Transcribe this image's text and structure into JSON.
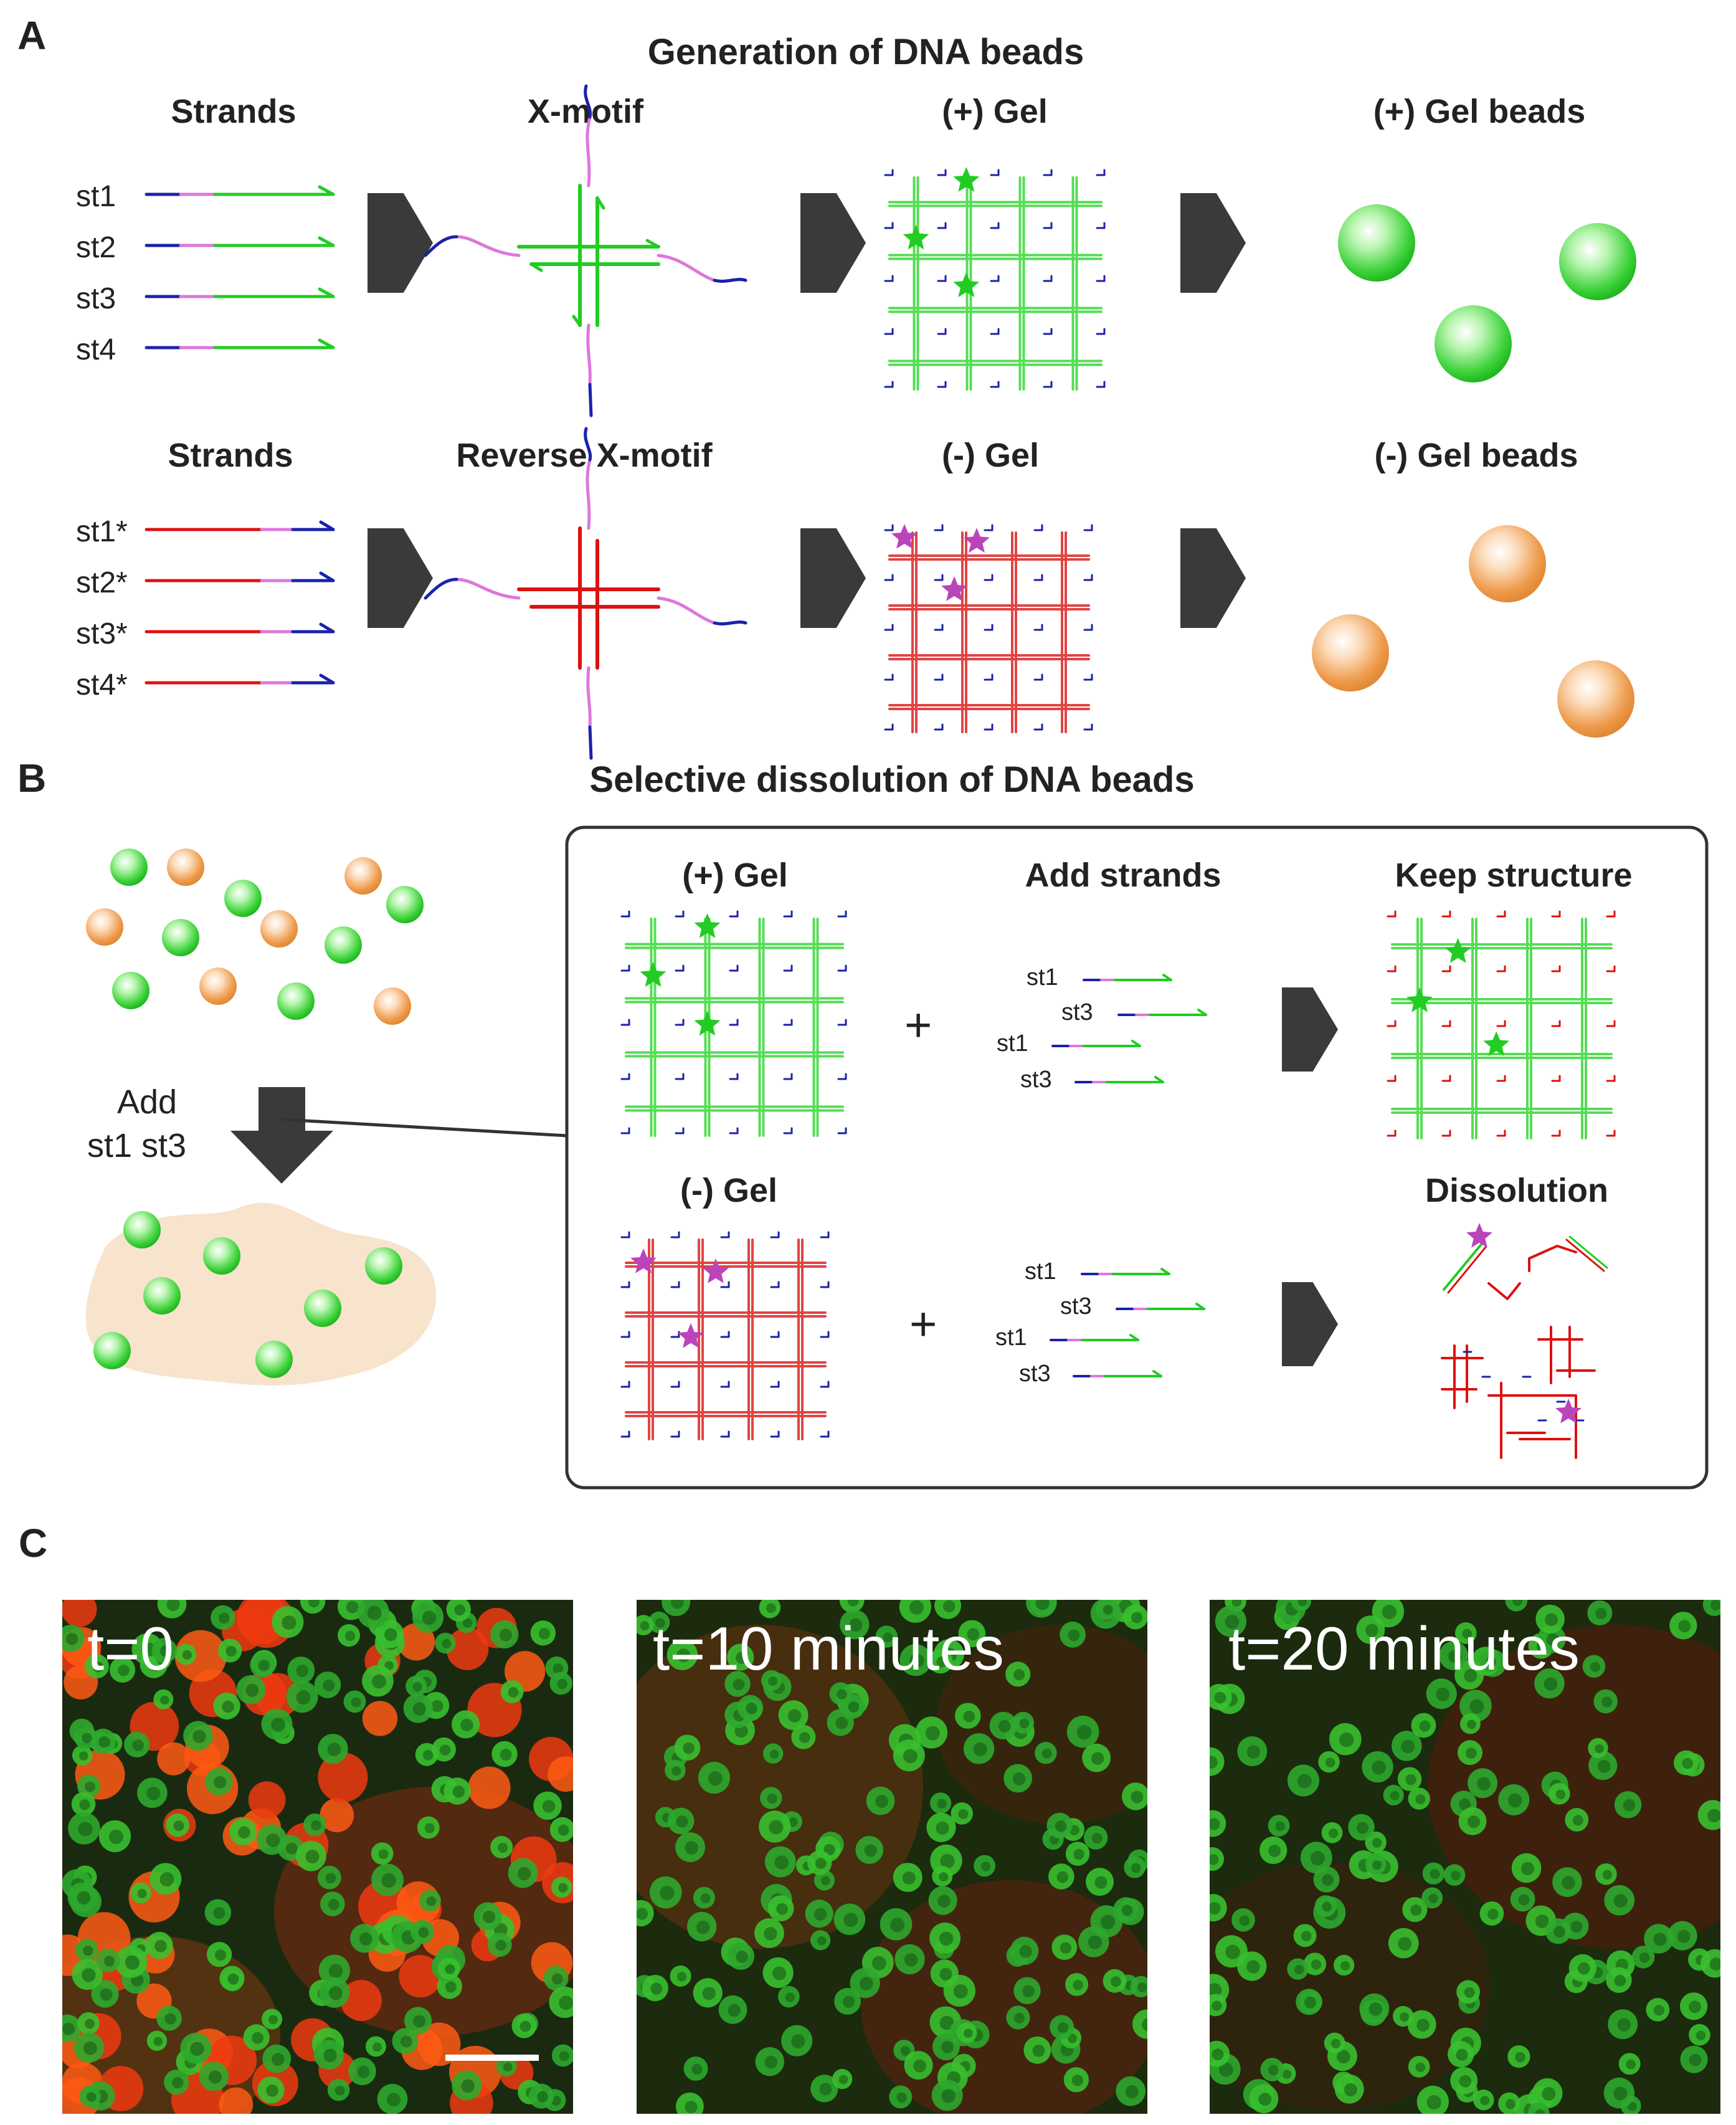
{
  "panel_a": {
    "label": "A",
    "title": "Generation of DNA beads",
    "row1": {
      "strands_title": "Strands",
      "strands": [
        "st1",
        "st2",
        "st3",
        "st4"
      ],
      "motif_title": "X-motif",
      "gel_title": "(+) Gel",
      "beads_title": "(+) Gel beads"
    },
    "row2": {
      "strands_title": "Strands",
      "strands": [
        "st1*",
        "st2*",
        "st3*",
        "st4*"
      ],
      "motif_title": "Reverse X-motif",
      "gel_title": "(-) Gel",
      "beads_title": "(-) Gel beads"
    }
  },
  "panel_b": {
    "label": "B",
    "title": "Selective dissolution of DNA beads",
    "add_line1": "Add",
    "add_line2": "st1  st3",
    "plus_gel_title": "(+) Gel",
    "add_strands_title": "Add strands",
    "keep_title": "Keep structure",
    "minus_gel_title": "(-) Gel",
    "dissolution_title": "Dissolution",
    "plus": "+",
    "added_strands": [
      "st1",
      "st3",
      "st1",
      "st3"
    ]
  },
  "panel_c": {
    "label": "C",
    "timepoints": [
      "t=0",
      "t=10 minutes",
      "t=20 minutes"
    ]
  },
  "colors": {
    "green": "#22cc22",
    "red": "#dd1111",
    "blue": "#1a22aa",
    "pink": "#dd77dd",
    "arrow": "#3a3a3a",
    "orange_bead": "#f0a050",
    "star_magenta": "#bb44bb"
  }
}
